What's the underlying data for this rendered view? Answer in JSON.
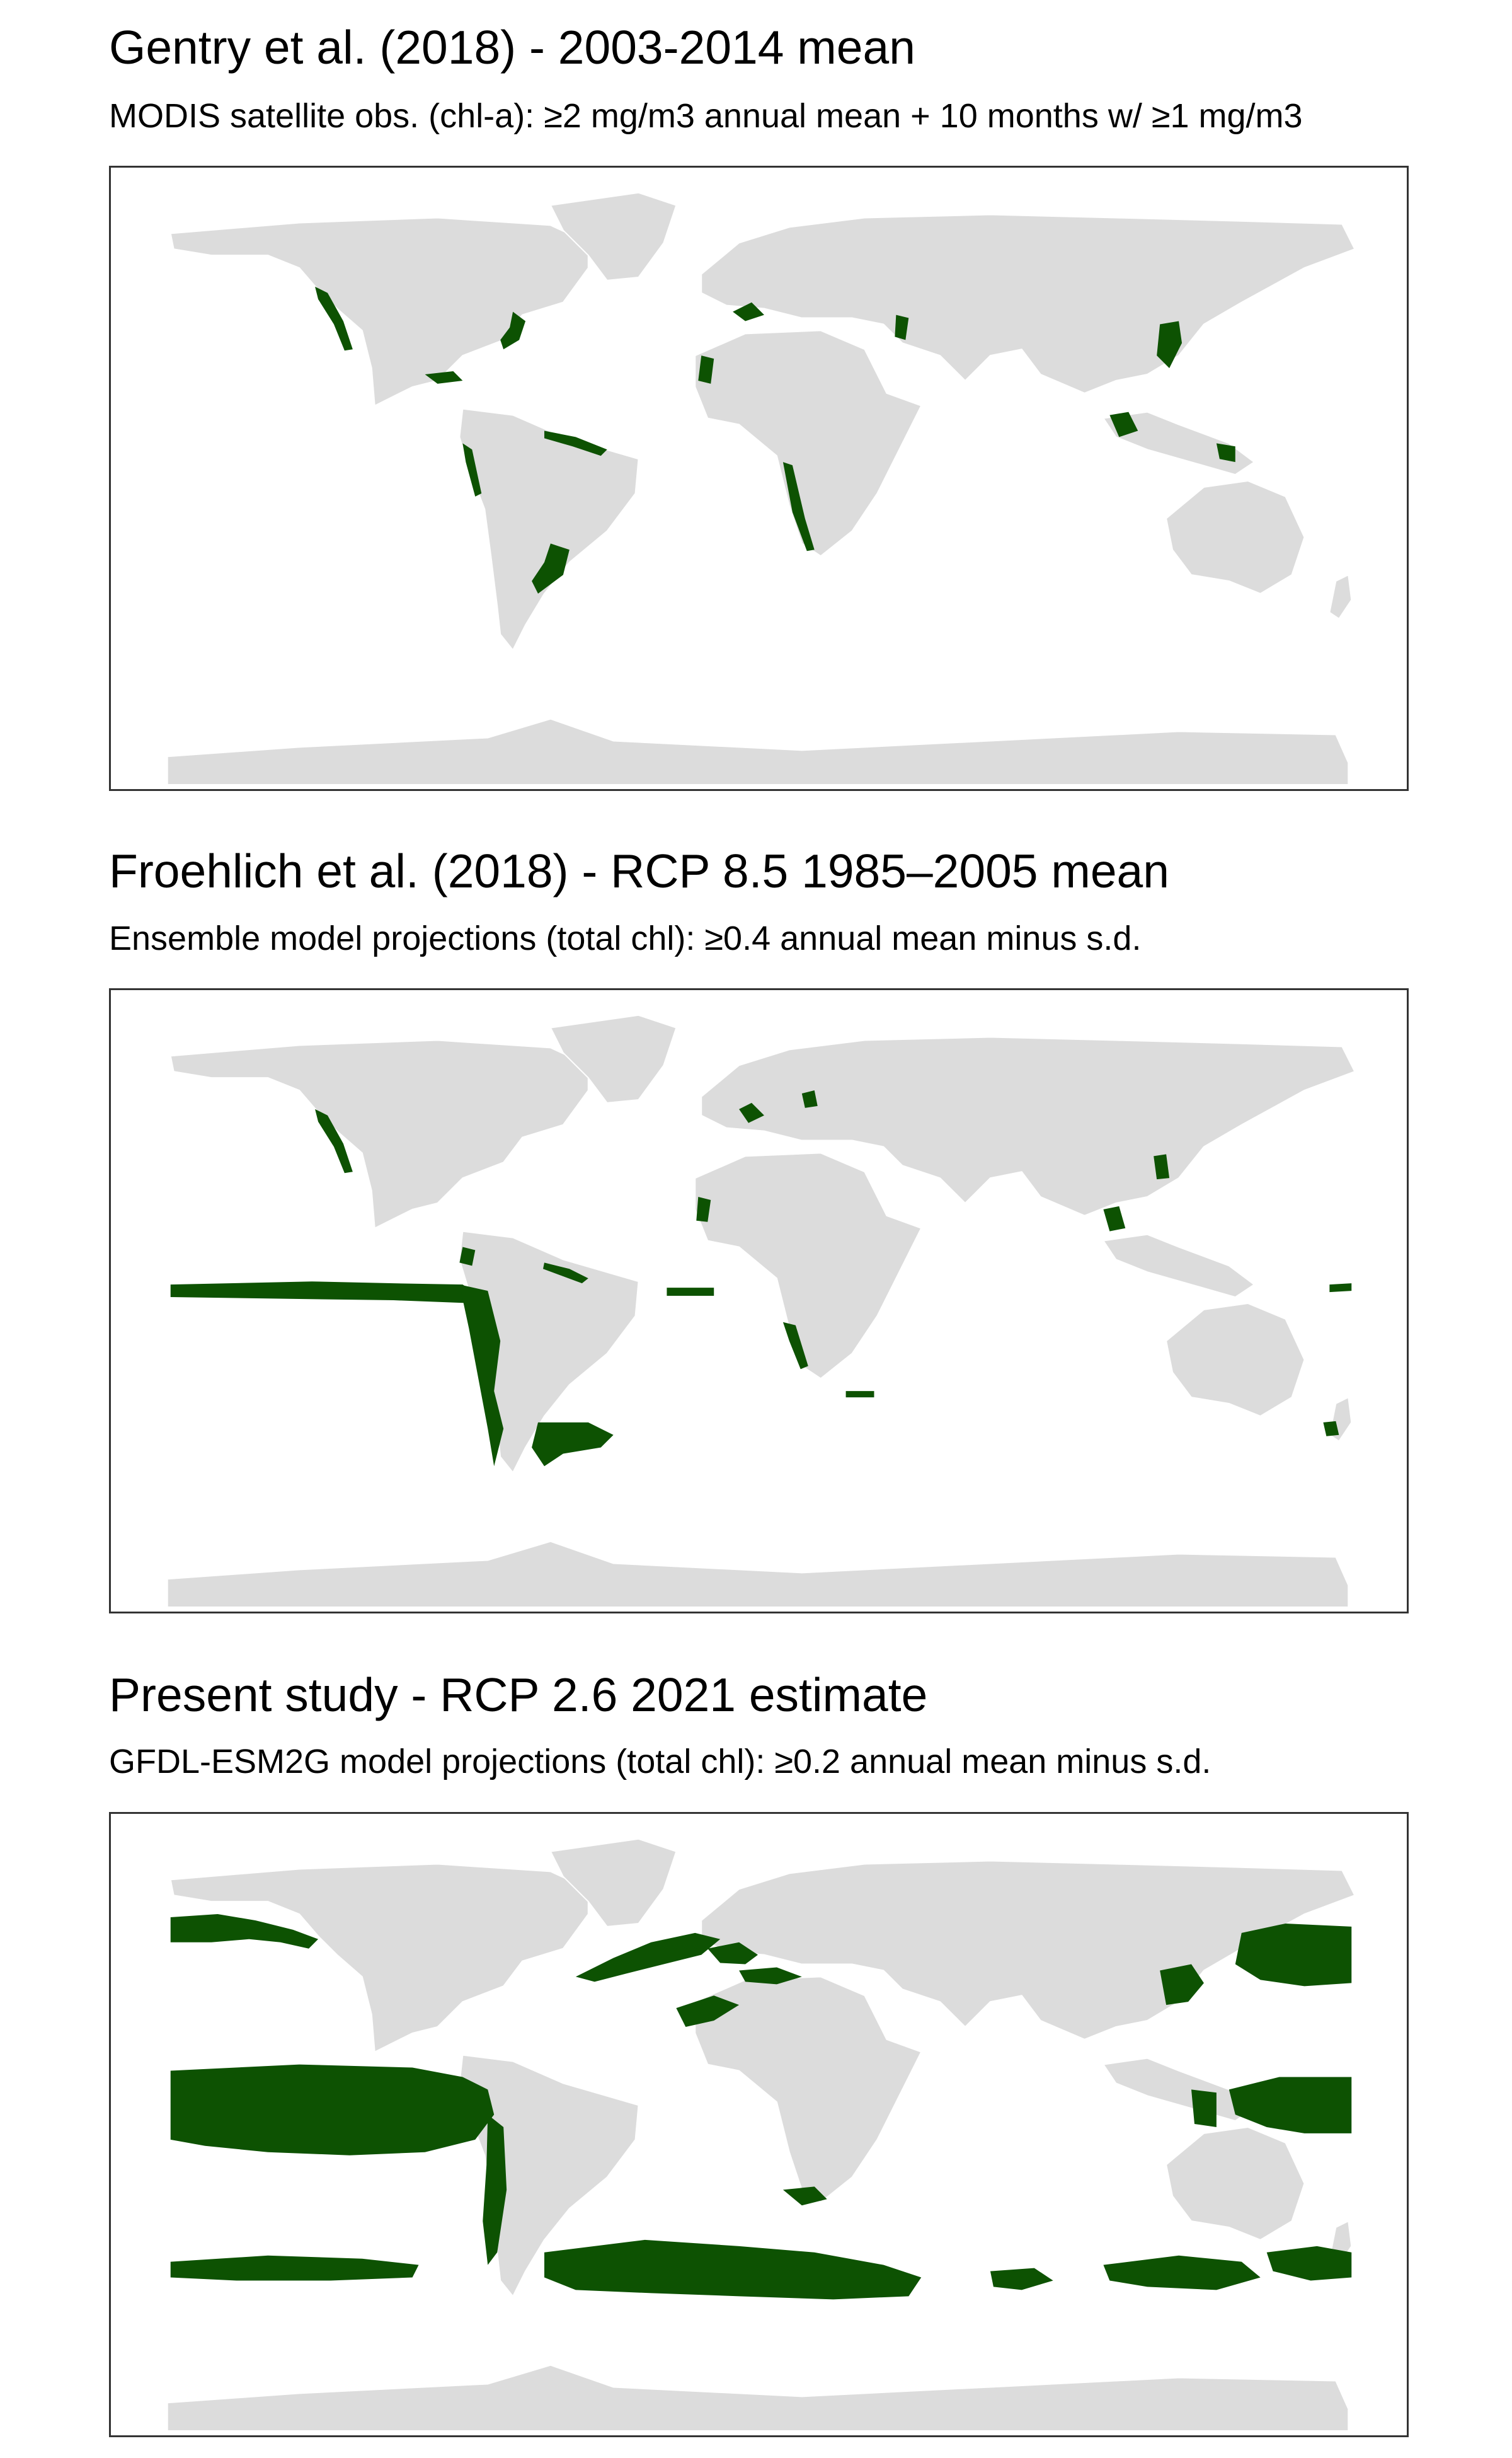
{
  "figure": {
    "colors": {
      "land": "#dcdcdc",
      "productive_zone": "#0d5202",
      "frame": "#333333",
      "background": "#ffffff"
    },
    "panels": [
      {
        "title": "Gentry et al. (2018) - 2003-2014 mean",
        "subtitle": "MODIS satellite obs. (chl-a): ≥2 mg/m3 annual mean + 10 months w/ ≥1 mg/m3"
      },
      {
        "title": "Froehlich et al. (2018) - RCP 8.5 1985–2005 mean",
        "subtitle": "Ensemble model projections (total chl): ≥0.4 annual mean minus s.d."
      },
      {
        "title": "Present study - RCP 2.6 2021 estimate",
        "subtitle": "GFDL-ESM2G model projections (total chl): ≥0.2 annual mean minus s.d."
      }
    ]
  }
}
